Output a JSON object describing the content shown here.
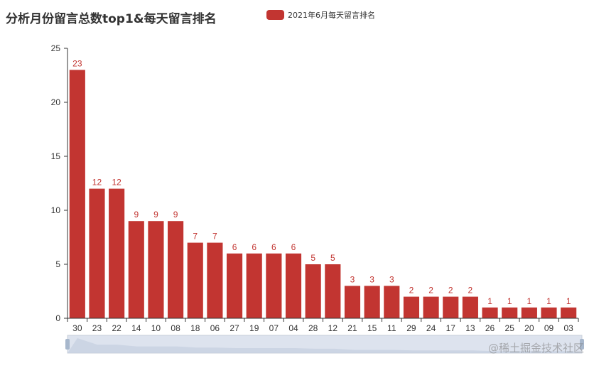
{
  "title": "分析月份留言总数top1&每天留言排名",
  "legend": {
    "label": "2021年6月每天留言排名",
    "color": "#c23531"
  },
  "watermark": "@稀土掘金技术社区",
  "colors": {
    "bar": "#c23531",
    "axis": "#333333",
    "label": "#c23531",
    "datazoom_fill": "#dde3ee"
  },
  "chart_data": {
    "type": "bar",
    "title": "分析月份留言总数top1&每天留言排名",
    "categories": [
      "30",
      "23",
      "22",
      "14",
      "10",
      "08",
      "18",
      "06",
      "27",
      "19",
      "07",
      "04",
      "28",
      "12",
      "21",
      "15",
      "11",
      "29",
      "24",
      "17",
      "13",
      "26",
      "25",
      "20",
      "09",
      "03"
    ],
    "series": [
      {
        "name": "2021年6月每天留言排名",
        "values": [
          23,
          12,
          12,
          9,
          9,
          9,
          7,
          7,
          6,
          6,
          6,
          6,
          5,
          5,
          3,
          3,
          3,
          2,
          2,
          2,
          2,
          1,
          1,
          1,
          1,
          1
        ]
      }
    ],
    "ylim": [
      0,
      25
    ],
    "yticks": [
      0,
      5,
      10,
      15,
      20,
      25
    ],
    "grid": false,
    "legend_position": "top",
    "data_labels": true
  }
}
